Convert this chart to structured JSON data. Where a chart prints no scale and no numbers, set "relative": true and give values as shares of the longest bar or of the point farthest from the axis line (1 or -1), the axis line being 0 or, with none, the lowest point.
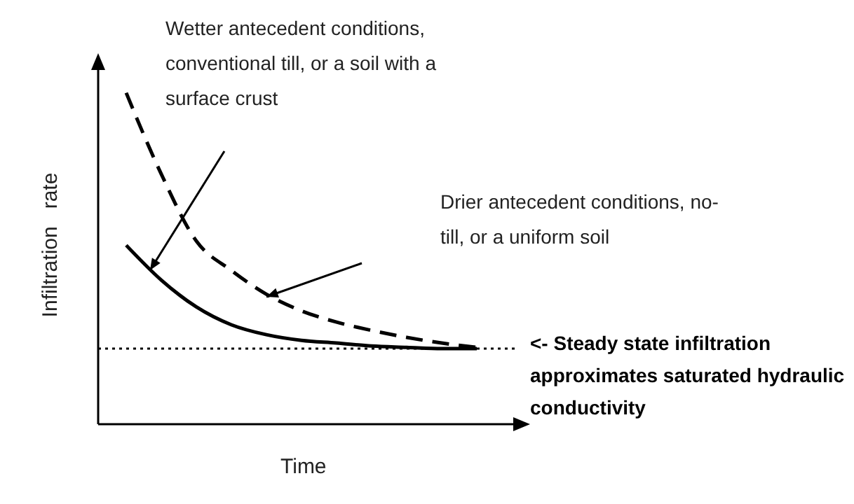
{
  "chart_data": {
    "type": "line",
    "relative": true,
    "xlabel": "Time",
    "ylabel": "Infiltration   rate",
    "categories": [
      null,
      null,
      null,
      null,
      null,
      null,
      null,
      null,
      null,
      null,
      null
    ],
    "series": [
      {
        "color": "#000000",
        "line_style": "dashed",
        "values": [
          1,
          0.755,
          0.553,
          0.464,
          0.392,
          0.342,
          0.308,
          0.283,
          0.262,
          0.245,
          0.232
        ]
      },
      {
        "color": "#000000",
        "line_style": "solid",
        "values": [
          0.54,
          0.435,
          0.354,
          0.3,
          0.27,
          0.253,
          0.245,
          0.236,
          0.232,
          0.228,
          0.228
        ]
      }
    ],
    "marker": "none",
    "grid": false,
    "legend": false,
    "ref_lines": [
      {
        "axis": "y",
        "value": 0.228,
        "label": "<- Steady state infiltration approximates saturated hydraulic conductivity",
        "color": "#000000",
        "line_style": "dotted"
      }
    ],
    "annotations": [
      "Wetter antecedent conditions, conventional till, or a soil with a surface crust",
      "Drier antecedent conditions, no-till, or a uniform soil"
    ]
  }
}
